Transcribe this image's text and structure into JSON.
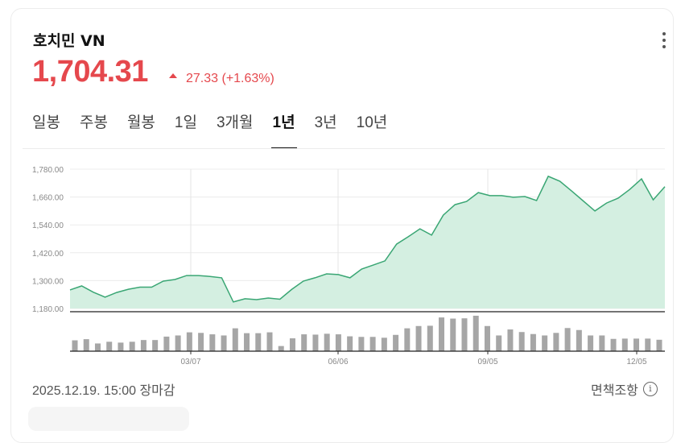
{
  "header": {
    "title": "호치민 VN",
    "price": "1,704.31",
    "change": "27.33 (+1.63%)",
    "direction_icon": "triangle-up-icon",
    "up_color": "#e5484d"
  },
  "tabs": [
    {
      "label": "일봉",
      "active": false
    },
    {
      "label": "주봉",
      "active": false
    },
    {
      "label": "월봉",
      "active": false
    },
    {
      "label": "1일",
      "active": false
    },
    {
      "label": "3개월",
      "active": false
    },
    {
      "label": "1년",
      "active": true
    },
    {
      "label": "3년",
      "active": false
    },
    {
      "label": "10년",
      "active": false
    }
  ],
  "chart_data": {
    "type": "area",
    "line_color": "#3aa674",
    "fill_color": "#d4efe1",
    "volume_color": "#a6a6a6",
    "ylim": [
      1180,
      1780
    ],
    "y_ticks": [
      "1,780.00",
      "1,660.00",
      "1,540.00",
      "1,420.00",
      "1,300.00",
      "1,180.00"
    ],
    "y_tick_values": [
      1780,
      1660,
      1540,
      1420,
      1300,
      1180
    ],
    "x_ticks": [
      "03/07",
      "06/06",
      "09/05",
      "12/05"
    ],
    "grid": true,
    "values": [
      1260,
      1277,
      1250,
      1229,
      1249,
      1263,
      1272,
      1272,
      1298,
      1305,
      1322,
      1322,
      1318,
      1312,
      1208,
      1222,
      1218,
      1225,
      1220,
      1262,
      1298,
      1312,
      1329,
      1326,
      1312,
      1350,
      1367,
      1385,
      1457,
      1489,
      1523,
      1496,
      1582,
      1627,
      1641,
      1679,
      1666,
      1666,
      1659,
      1662,
      1645,
      1749,
      1728,
      1686,
      1643,
      1600,
      1634,
      1655,
      1693,
      1738,
      1648,
      1704.31
    ],
    "volume": [
      38,
      42,
      27,
      33,
      30,
      33,
      39,
      39,
      51,
      55,
      66,
      64,
      59,
      55,
      80,
      63,
      63,
      66,
      18,
      45,
      59,
      58,
      61,
      59,
      52,
      50,
      50,
      47,
      57,
      80,
      88,
      89,
      118,
      114,
      115,
      124,
      88,
      55,
      76,
      67,
      60,
      55,
      64,
      81,
      74,
      55,
      55,
      43,
      44,
      44,
      44,
      40
    ]
  },
  "footer": {
    "timestamp": "2025.12.19. 15:00 장마감",
    "disclaimer_link": "면책조항",
    "info_glyph": "i"
  }
}
